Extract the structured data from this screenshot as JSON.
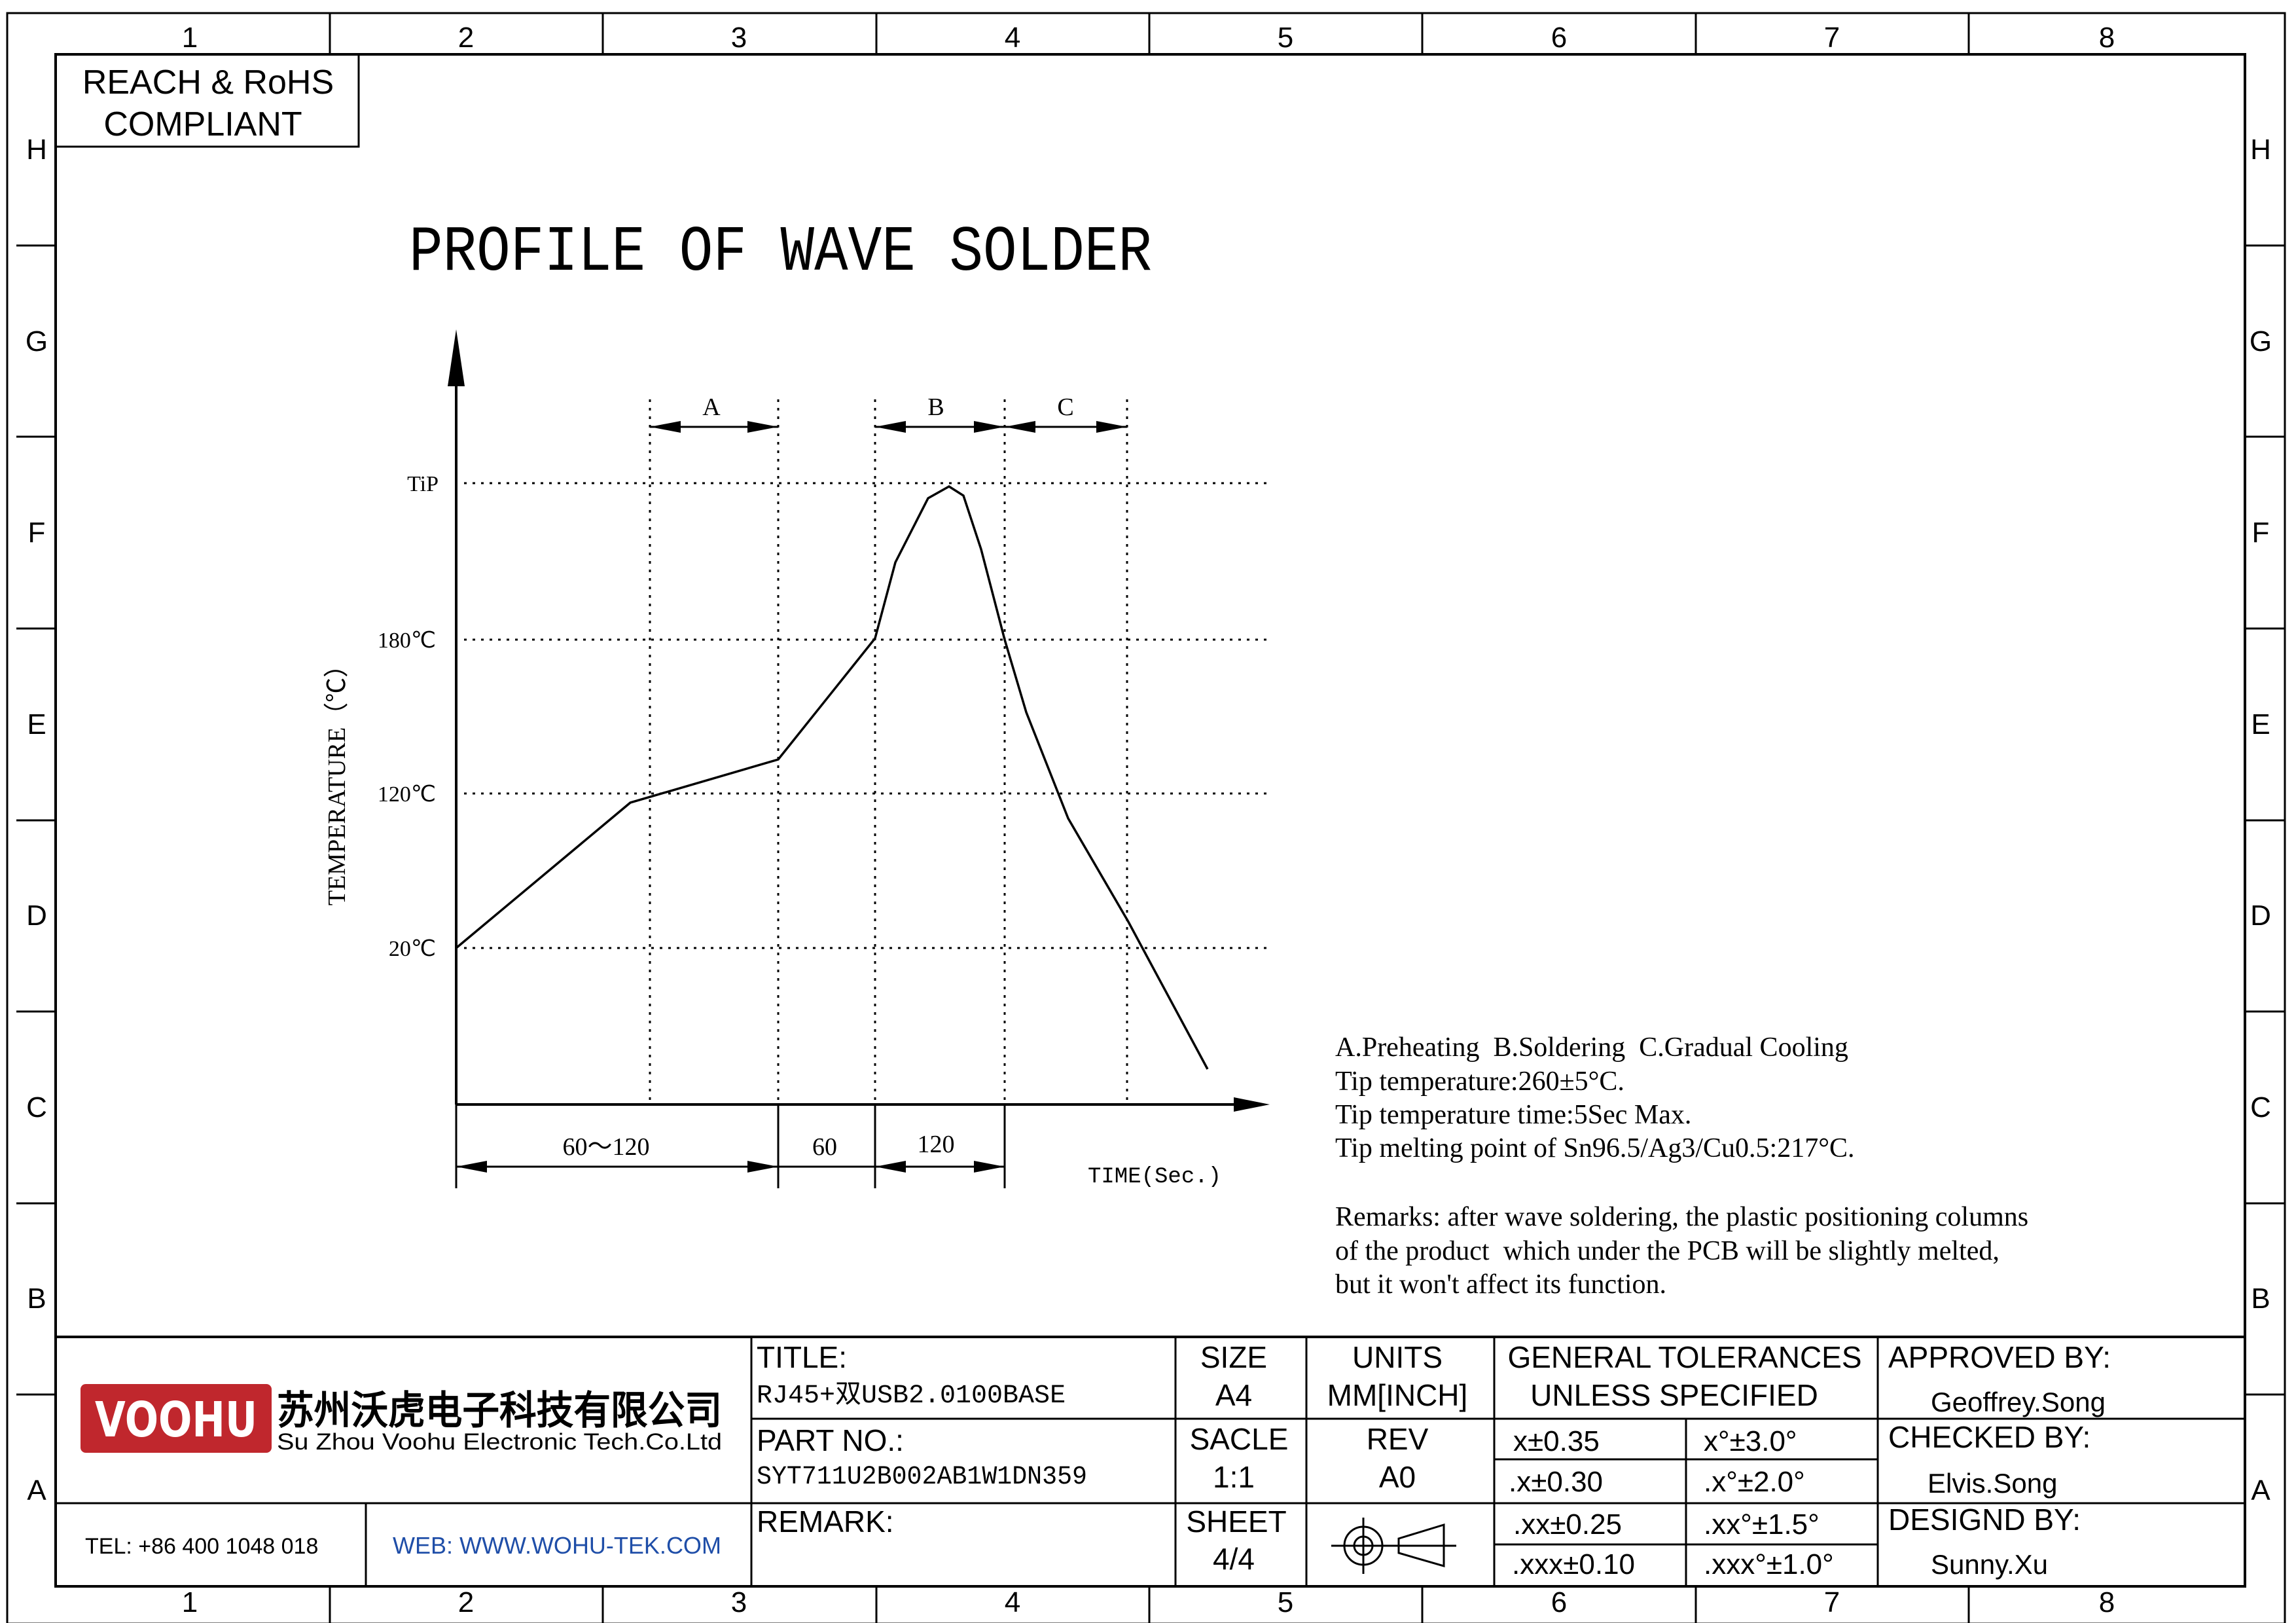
{
  "grid": {
    "columns": [
      "1",
      "2",
      "3",
      "4",
      "5",
      "6",
      "7",
      "8"
    ],
    "rows": [
      "H",
      "G",
      "F",
      "E",
      "D",
      "C",
      "B",
      "A"
    ]
  },
  "compliance": {
    "line1": "REACH & RoHS",
    "line2": "COMPLIANT"
  },
  "drawing_title": "PROFILE OF WAVE SOLDER",
  "chart": {
    "y_axis_label": "TEMPERATURE（℃）",
    "y_ticks": [
      "TiP",
      "180℃",
      "120℃",
      "20℃"
    ],
    "zones": [
      "A",
      "B",
      "C"
    ],
    "durations": [
      "60～120",
      "60",
      "120"
    ],
    "x_axis_label": "TIME(Sec.)"
  },
  "notes": {
    "legend": "A.Preheating  B.Soldering  C.Gradual Cooling",
    "tip_temperature": "Tip temperature:260±5°C.",
    "tip_time": "Tip temperature time:5Sec Max.",
    "melting_point": "Tip melting point of Sn96.5/Ag3/Cu0.5:217°C.",
    "remarks": [
      "Remarks: after wave soldering, the plastic positioning columns",
      "of the product  which under the PCB will be slightly melted,",
      "but it won't affect its function."
    ]
  },
  "company": {
    "logo_text": "VOOHU",
    "name_cn": "苏州沃虎电子科技有限公司",
    "name_en": "Su Zhou Voohu Electronic Tech.Co.Ltd",
    "tel": "TEL: +86 400 1048 018",
    "web": "WEB: WWW.WOHU-TEK.COM",
    "brand_color": "#c0272d"
  },
  "title_block": {
    "title_label": "TITLE:",
    "title_value": "RJ45+双USB2.0100BASE",
    "part_label": "PART NO.:",
    "part_value": "SYT711U2B002AB1W1DN359",
    "remark_label": "REMARK:",
    "size_label": "SIZE",
    "size_value": "A4",
    "units_label": "UNITS",
    "units_value": "MM[INCH]",
    "scale_label": "SACLE",
    "scale_value": "1:1",
    "rev_label": "REV",
    "rev_value": "A0",
    "sheet_label": "SHEET",
    "sheet_value": "4/4",
    "tolerances_title_1": "GENERAL TOLERANCES",
    "tolerances_title_2": "UNLESS SPECIFIED",
    "tolerances": [
      [
        "x±0.35",
        "x°±3.0°"
      ],
      [
        ".x±0.30",
        ".x°±2.0°"
      ],
      [
        ".xx±0.25",
        ".xx°±1.5°"
      ],
      [
        ".xxx±0.10",
        ".xxx°±1.0°"
      ]
    ],
    "approved_label": "APPROVED BY:",
    "approved_value": "Geoffrey.Song",
    "checked_label": "CHECKED BY:",
    "checked_value": "Elvis.Song",
    "designed_label": "DESIGND BY:",
    "designed_value": "Sunny.Xu"
  }
}
